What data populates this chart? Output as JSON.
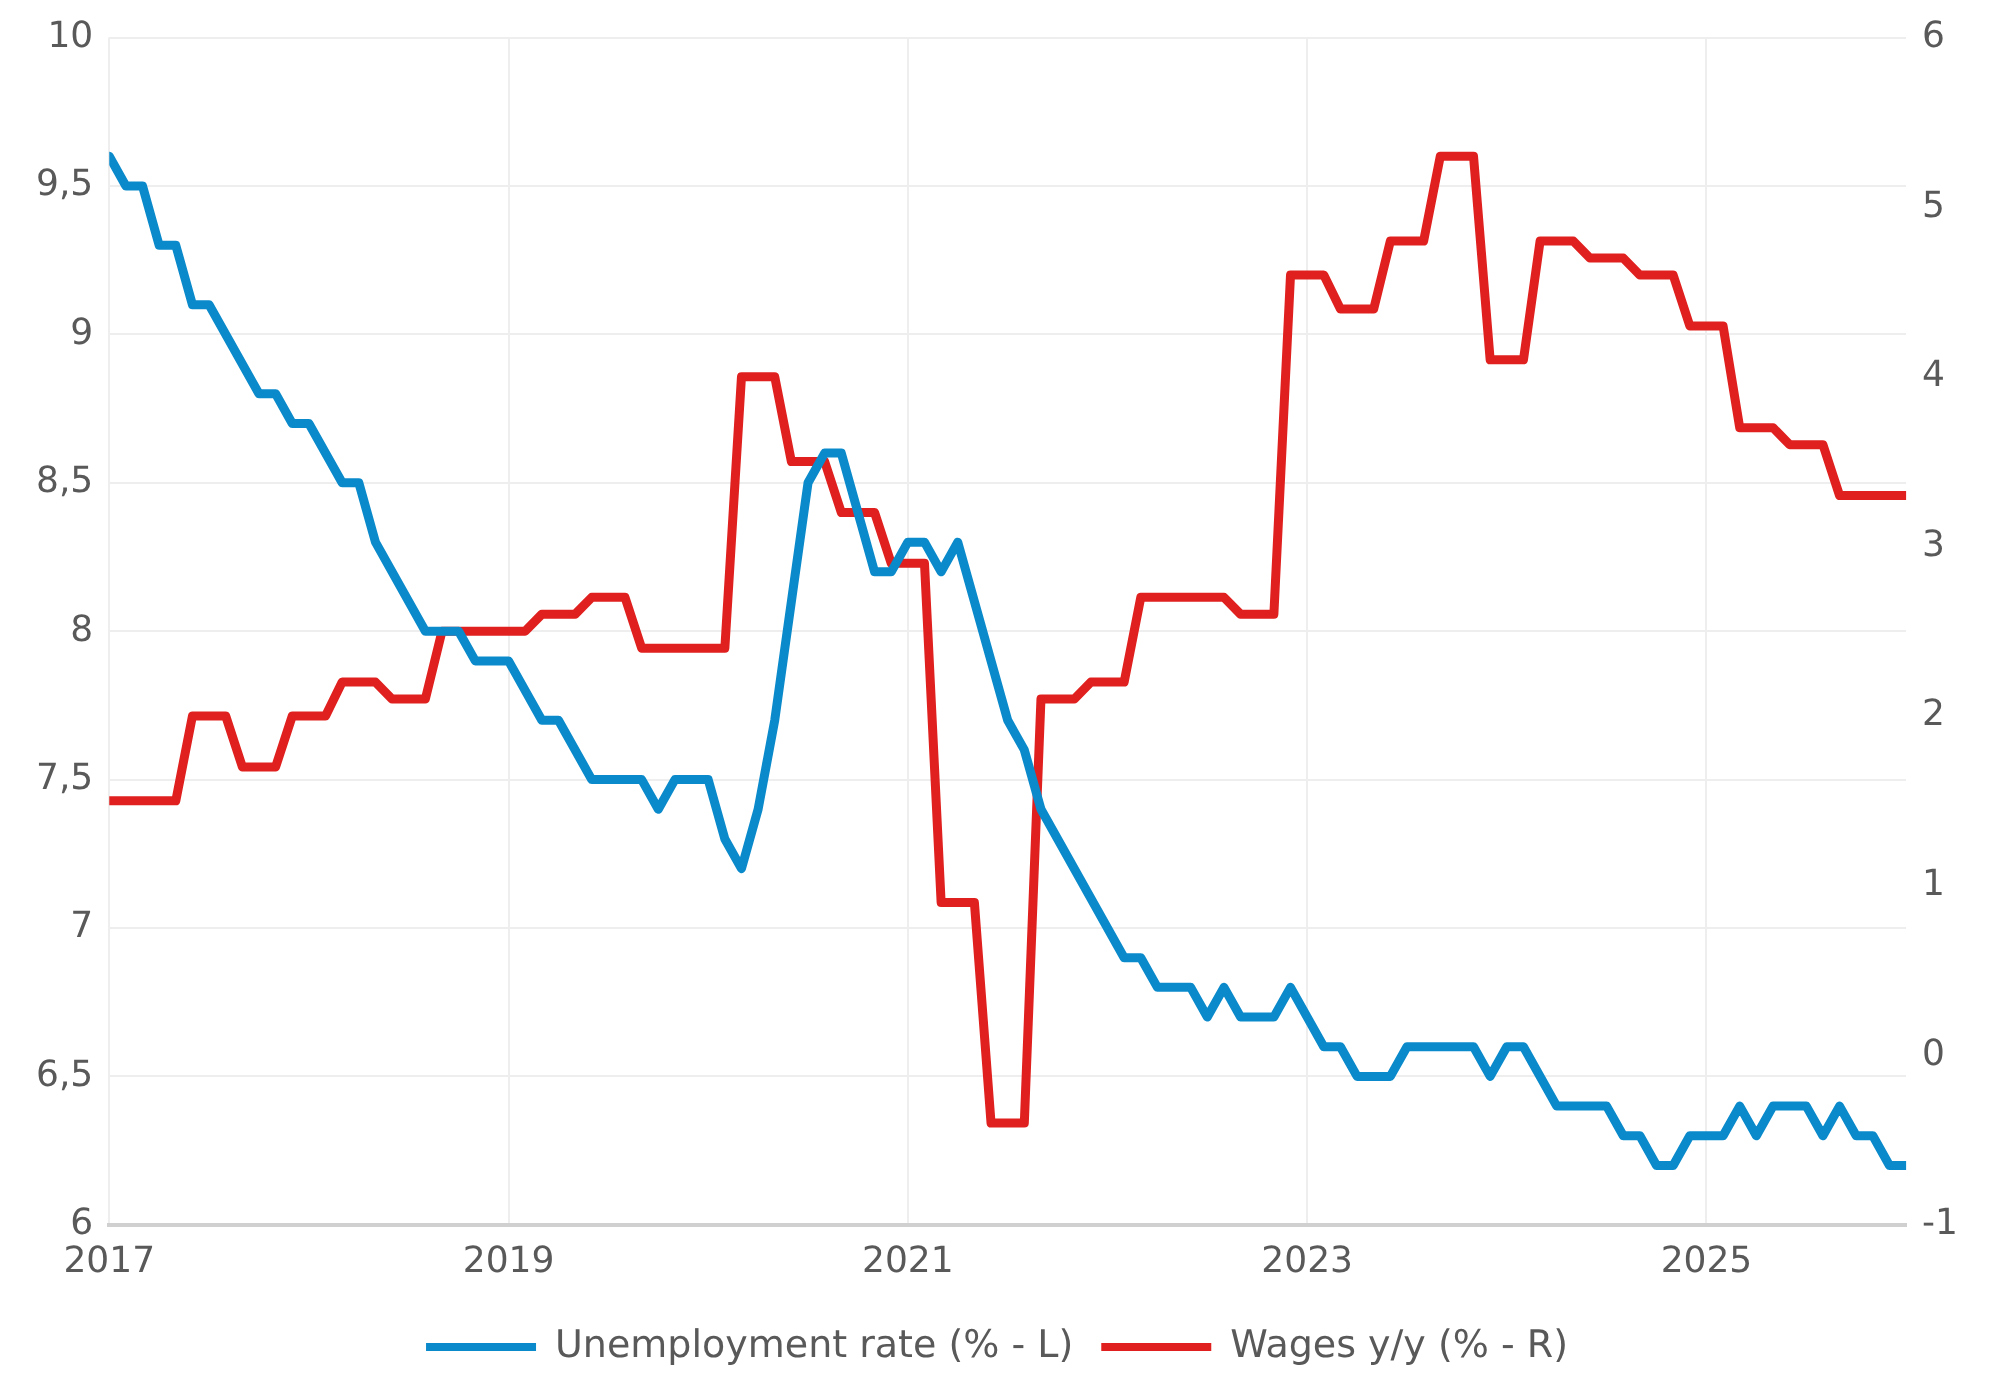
{
  "chart_data": {
    "type": "line",
    "xlim": [
      "2017-01",
      "2026-01"
    ],
    "xticks": [
      "2017",
      "2019",
      "2021",
      "2023",
      "2025"
    ],
    "ylim": [
      6,
      10
    ],
    "yticks": [
      6,
      {
        "value": 6.5,
        "label": "6,5"
      },
      7,
      {
        "value": 7.5,
        "label": "7,5"
      },
      8,
      {
        "value": 8.5,
        "label": "8,5"
      },
      9,
      {
        "value": 9.5,
        "label": "9,5"
      },
      10
    ],
    "y2lim": [
      -1,
      6
    ],
    "y2ticks": [
      -1,
      0,
      1,
      2,
      3,
      4,
      5,
      6
    ],
    "grid": true,
    "legend": "bottom",
    "marker": "none",
    "line_style": "solid",
    "series": [
      {
        "name": "Unemployment rate (% - L)",
        "color": "#0a8acb",
        "axis": "y",
        "x": [
          "2017-01",
          "2017-02",
          "2017-03",
          "2017-04",
          "2017-05",
          "2017-06",
          "2017-07",
          "2017-10",
          "2017-11",
          "2017-12",
          "2018-01",
          "2018-03",
          "2018-04",
          "2018-05",
          "2018-08",
          "2018-10",
          "2018-11",
          "2019-01",
          "2019-03",
          "2019-04",
          "2019-06",
          "2019-09",
          "2019-10",
          "2019-11",
          "2020-01",
          "2020-02",
          "2020-03",
          "2020-04",
          "2020-05",
          "2020-07",
          "2020-08",
          "2020-09",
          "2020-11",
          "2020-12",
          "2021-01",
          "2021-02",
          "2021-03",
          "2021-04",
          "2021-07",
          "2021-08",
          "2021-09",
          "2022-02",
          "2022-03",
          "2022-04",
          "2022-06",
          "2022-07",
          "2022-08",
          "2022-09",
          "2022-11",
          "2022-12",
          "2023-02",
          "2023-03",
          "2023-04",
          "2023-06",
          "2023-07",
          "2023-11",
          "2023-12",
          "2024-01",
          "2024-02",
          "2024-04",
          "2024-07",
          "2024-08",
          "2024-09",
          "2024-10",
          "2024-11",
          "2024-12",
          "2025-02",
          "2025-03",
          "2025-04",
          "2025-05",
          "2025-07",
          "2025-08",
          "2025-09",
          "2025-10",
          "2025-11",
          "2025-12",
          "2026-01"
        ],
        "values": [
          9.6,
          9.5,
          9.5,
          9.3,
          9.3,
          9.1,
          9.1,
          8.8,
          8.8,
          8.7,
          8.7,
          8.5,
          8.5,
          8.3,
          8.0,
          8.0,
          7.9,
          7.9,
          7.7,
          7.7,
          7.5,
          7.5,
          7.4,
          7.5,
          7.5,
          7.3,
          7.2,
          7.4,
          7.7,
          8.5,
          8.6,
          8.6,
          8.2,
          8.2,
          8.3,
          8.3,
          8.2,
          8.3,
          7.7,
          7.6,
          7.4,
          6.9,
          6.9,
          6.8,
          6.8,
          6.7,
          6.8,
          6.7,
          6.7,
          6.8,
          6.6,
          6.6,
          6.5,
          6.5,
          6.6,
          6.6,
          6.5,
          6.6,
          6.6,
          6.4,
          6.4,
          6.3,
          6.3,
          6.2,
          6.2,
          6.3,
          6.3,
          6.4,
          6.3,
          6.4,
          6.4,
          6.3,
          6.4,
          6.3,
          6.3,
          6.2,
          6.2
        ]
      },
      {
        "name": "Wages y/y (% - R)",
        "color": "#e0201e",
        "axis": "y2",
        "x": [
          "2017-01",
          "2017-05",
          "2017-06",
          "2017-08",
          "2017-09",
          "2017-11",
          "2017-12",
          "2018-02",
          "2018-03",
          "2018-05",
          "2018-06",
          "2018-08",
          "2018-09",
          "2019-02",
          "2019-03",
          "2019-05",
          "2019-06",
          "2019-08",
          "2019-09",
          "2020-02",
          "2020-03",
          "2020-05",
          "2020-06",
          "2020-08",
          "2020-09",
          "2020-11",
          "2020-12",
          "2021-02",
          "2021-03",
          "2021-05",
          "2021-06",
          "2021-08",
          "2021-09",
          "2021-11",
          "2021-12",
          "2022-02",
          "2022-03",
          "2022-08",
          "2022-09",
          "2022-11",
          "2022-12",
          "2023-02",
          "2023-03",
          "2023-05",
          "2023-06",
          "2023-08",
          "2023-09",
          "2023-11",
          "2023-12",
          "2024-02",
          "2024-03",
          "2024-05",
          "2024-06",
          "2024-08",
          "2024-09",
          "2024-11",
          "2024-12",
          "2025-02",
          "2025-03",
          "2025-05",
          "2025-06",
          "2025-08",
          "2025-09",
          "2026-01"
        ],
        "values": [
          1.5,
          1.5,
          2.0,
          2.0,
          1.7,
          1.7,
          2.0,
          2.0,
          2.2,
          2.2,
          2.1,
          2.1,
          2.5,
          2.5,
          2.6,
          2.6,
          2.7,
          2.7,
          2.4,
          2.4,
          4.0,
          4.0,
          3.5,
          3.5,
          3.2,
          3.2,
          2.9,
          2.9,
          0.9,
          0.9,
          -0.4,
          -0.4,
          2.1,
          2.1,
          2.2,
          2.2,
          2.7,
          2.7,
          2.6,
          2.6,
          4.6,
          4.6,
          4.4,
          4.4,
          4.8,
          4.8,
          5.3,
          5.3,
          4.1,
          4.1,
          4.8,
          4.8,
          4.7,
          4.7,
          4.6,
          4.6,
          4.3,
          4.3,
          3.7,
          3.7,
          3.6,
          3.6,
          3.3,
          3.3
        ]
      }
    ]
  }
}
